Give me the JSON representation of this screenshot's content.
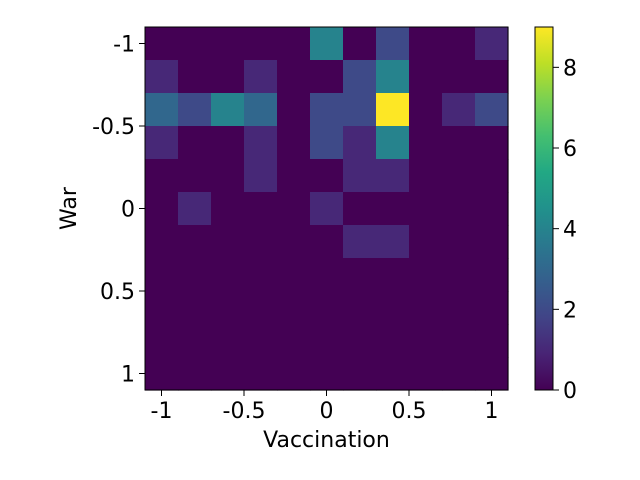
{
  "chart_data": {
    "type": "heatmap",
    "xlabel": "Vaccination",
    "ylabel": "War",
    "x_ticks": [
      "-1",
      "-0.5",
      "0",
      "0.5",
      "1"
    ],
    "y_ticks": [
      "-1",
      "-0.5",
      "0",
      "0.5",
      "1"
    ],
    "colorbar_ticks": [
      "0",
      "2",
      "4",
      "6",
      "8"
    ],
    "xlim": [
      -1.1,
      1.1
    ],
    "ylim": [
      -1.1,
      1.1
    ],
    "y_inverted": true,
    "vmin": 0,
    "vmax": 9,
    "colormap": "viridis",
    "bins": 11,
    "counts": [
      [
        0,
        0,
        0,
        0,
        0,
        4,
        0,
        2,
        0,
        0,
        1
      ],
      [
        1,
        0,
        0,
        1,
        0,
        0,
        2,
        4,
        0,
        0,
        0
      ],
      [
        3,
        2,
        4,
        3,
        0,
        2,
        2,
        9,
        0,
        1,
        2
      ],
      [
        1,
        0,
        0,
        1,
        0,
        2,
        1,
        4,
        0,
        0,
        0
      ],
      [
        0,
        0,
        0,
        1,
        0,
        0,
        1,
        1,
        0,
        0,
        0
      ],
      [
        0,
        1,
        0,
        0,
        0,
        1,
        0,
        0,
        0,
        0,
        0
      ],
      [
        0,
        0,
        0,
        0,
        0,
        0,
        1,
        1,
        0,
        0,
        0
      ],
      [
        0,
        0,
        0,
        0,
        0,
        0,
        0,
        0,
        0,
        0,
        0
      ],
      [
        0,
        0,
        0,
        0,
        0,
        0,
        0,
        0,
        0,
        0,
        0
      ],
      [
        0,
        0,
        0,
        0,
        0,
        0,
        0,
        0,
        0,
        0,
        0
      ],
      [
        0,
        0,
        0,
        0,
        0,
        0,
        0,
        0,
        0,
        0,
        0
      ]
    ]
  }
}
